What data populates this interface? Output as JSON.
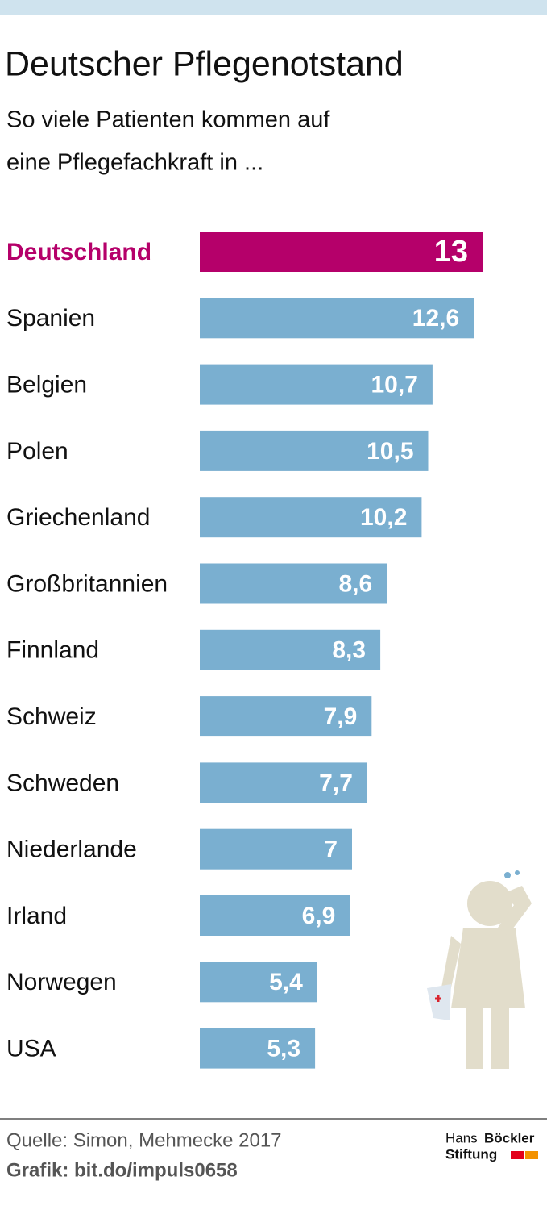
{
  "chart_data": {
    "type": "barh",
    "title": "Deutscher Pflegenotstand",
    "subtitle": [
      "So viele Patienten kommen auf",
      "eine Pflegefachkraft in ..."
    ],
    "categories": [
      "Deutschland",
      "Spanien",
      "Belgien",
      "Polen",
      "Griechenland",
      "Großbritannien",
      "Finnland",
      "Schweiz",
      "Schweden",
      "Niederlande",
      "Irland",
      "Norwegen",
      "USA"
    ],
    "values": [
      13,
      12.6,
      10.7,
      10.5,
      10.2,
      8.6,
      8.3,
      7.9,
      7.7,
      7,
      6.9,
      5.4,
      5.3
    ],
    "value_labels": [
      "13",
      "12,6",
      "10,7",
      "10,5",
      "10,2",
      "8,6",
      "8,3",
      "7,9",
      "7,7",
      "7",
      "6,9",
      "5,4",
      "5,3"
    ],
    "color": "#7aafd0",
    "colors": [
      "#b5006a",
      "#7aafd0",
      "#7aafd0",
      "#7aafd0",
      "#7aafd0",
      "#7aafd0",
      "#7aafd0",
      "#7aafd0",
      "#7aafd0",
      "#7aafd0",
      "#7aafd0",
      "#7aafd0",
      "#7aafd0"
    ],
    "source": "Quelle: Simon, Mehmecke 2017",
    "credit": "Grafik: bit.do/impuls0658",
    "logo": [
      "Hans",
      "Böckler",
      "Stiftung"
    ]
  }
}
